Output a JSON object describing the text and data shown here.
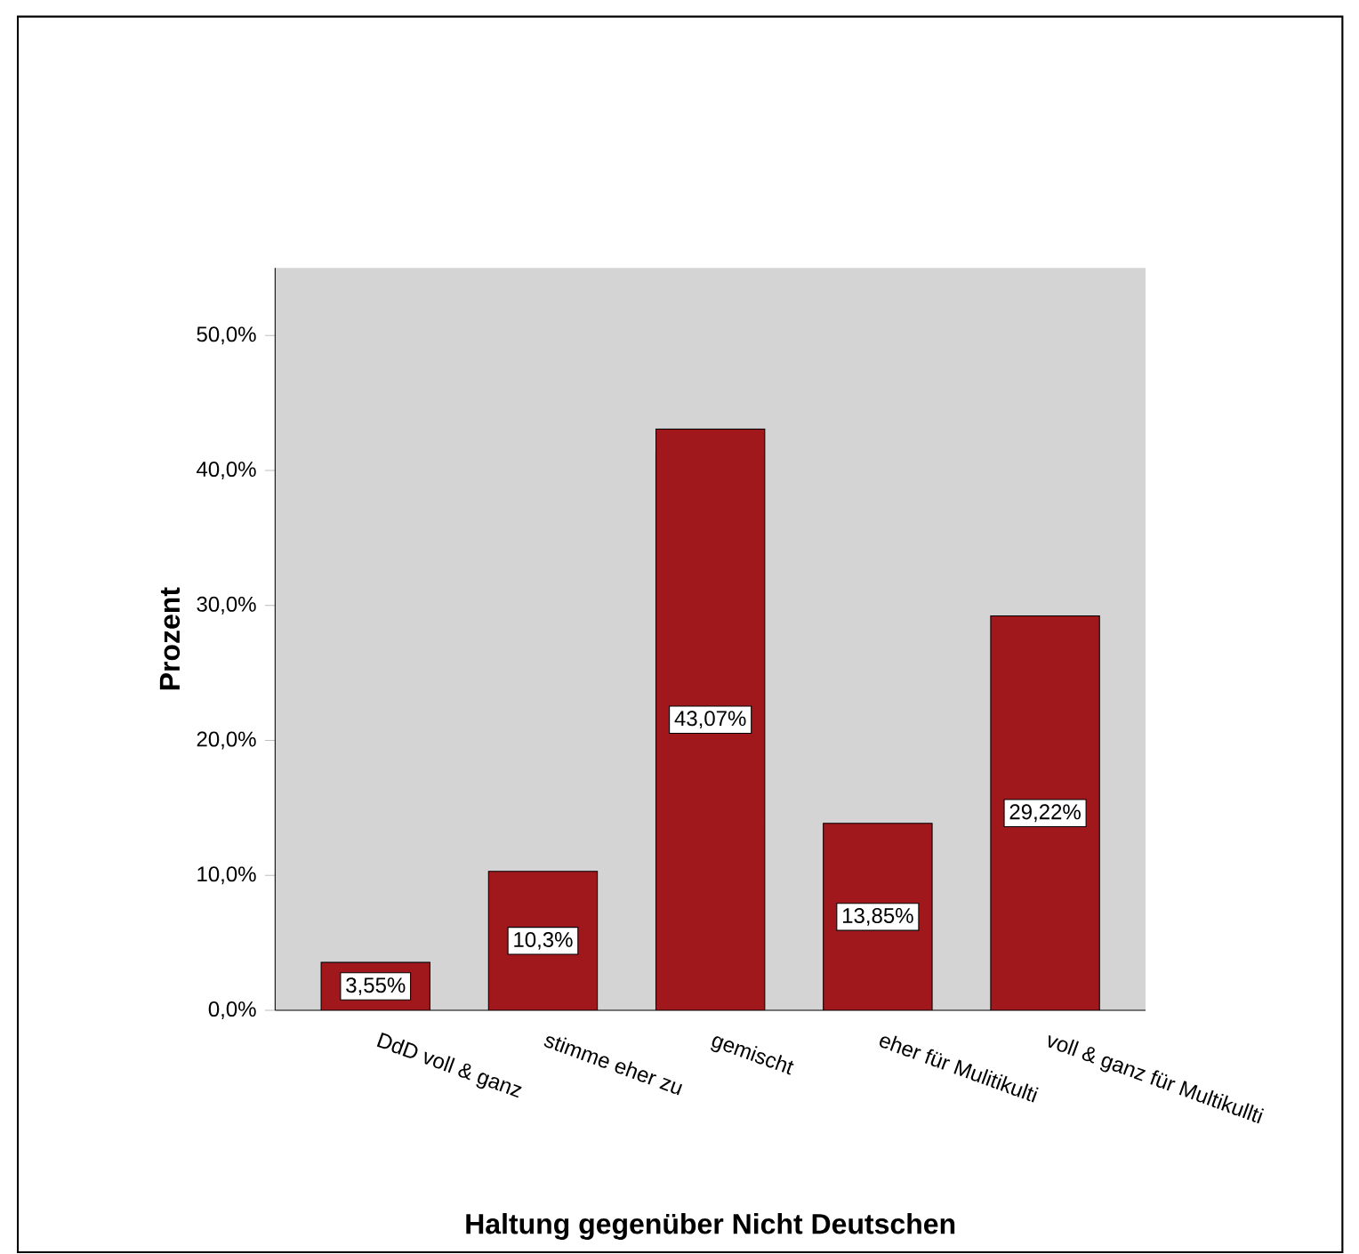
{
  "chart_data": {
    "type": "bar",
    "xlabel": "Haltung gegenüber Nicht Deutschen",
    "ylabel": "Prozent",
    "categories": [
      "DdD voll & ganz",
      "stimme eher zu",
      "gemischt",
      "eher für Mulitikulti",
      "voll & ganz für Multikullti"
    ],
    "values": [
      3.55,
      10.3,
      43.07,
      13.85,
      29.22
    ],
    "value_labels": [
      "3,55%",
      "10,3%",
      "43,07%",
      "13,85%",
      "29,22%"
    ],
    "color": "#a0181c",
    "ylim": [
      0,
      55
    ],
    "yticks": [
      {
        "value": 0,
        "label": "0,0%"
      },
      {
        "value": 10,
        "label": "10,0%"
      },
      {
        "value": 20,
        "label": "20,0%"
      },
      {
        "value": 30,
        "label": "30,0%"
      },
      {
        "value": 40,
        "label": "40,0%"
      },
      {
        "value": 50,
        "label": "50,0%"
      }
    ]
  }
}
